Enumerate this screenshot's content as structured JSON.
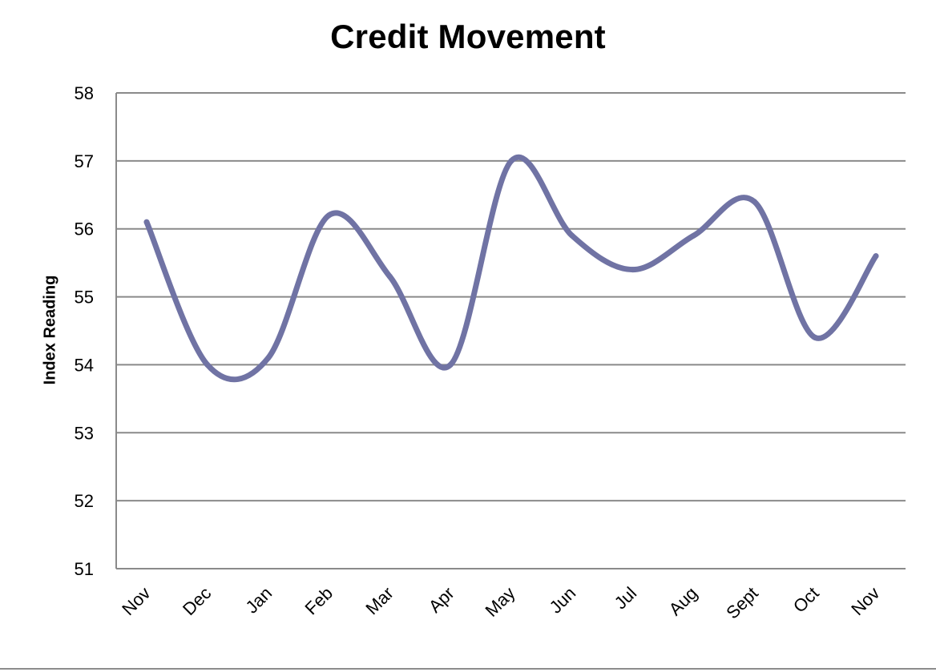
{
  "chart_data": {
    "type": "line",
    "title": "Credit Movement",
    "xlabel": "",
    "ylabel": "Index Reading",
    "categories": [
      "Nov",
      "Dec",
      "Jan",
      "Feb",
      "Mar",
      "Apr",
      "May",
      "Jun",
      "Jul",
      "Aug",
      "Sept",
      "Oct",
      "Nov"
    ],
    "series": [
      {
        "values": [
          56.1,
          54.0,
          54.1,
          56.2,
          55.3,
          54.0,
          57.0,
          55.9,
          55.4,
          55.9,
          56.4,
          54.4,
          55.6
        ],
        "color": "#7073a4"
      }
    ],
    "ylim": [
      51,
      58
    ],
    "yticks": [
      51,
      52,
      53,
      54,
      55,
      56,
      57,
      58
    ],
    "grid": true,
    "legend": "none"
  }
}
